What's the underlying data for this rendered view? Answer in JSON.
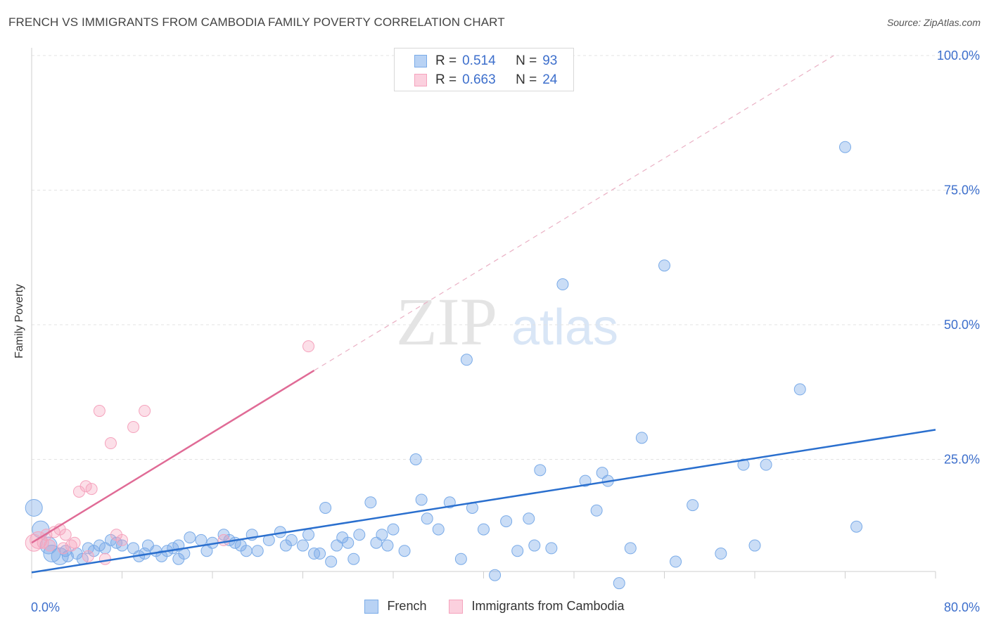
{
  "title": "FRENCH VS IMMIGRANTS FROM CAMBODIA FAMILY POVERTY CORRELATION CHART",
  "source": "Source: ZipAtlas.com",
  "watermark": {
    "zip": "ZIP",
    "atlas": "atlas"
  },
  "legend": {
    "rows": [
      {
        "r_label": "R =",
        "r_value": "0.514",
        "n_label": "N =",
        "n_value": "93"
      },
      {
        "r_label": "R =",
        "r_value": "0.663",
        "n_label": "N =",
        "n_value": "24"
      }
    ]
  },
  "chart_data": {
    "type": "scatter",
    "title": "FRENCH VS IMMIGRANTS FROM CAMBODIA FAMILY POVERTY CORRELATION CHART",
    "xlabel": "",
    "ylabel": "Family Poverty",
    "xlim": [
      0,
      80
    ],
    "ylim": [
      0,
      100
    ],
    "x_tick_labels": [
      "0.0%",
      "80.0%"
    ],
    "y_tick_labels": [
      "100.0%",
      "75.0%",
      "50.0%",
      "25.0%"
    ],
    "y_tick_values": [
      100,
      75,
      50,
      25
    ],
    "grid": true,
    "legend_position": "top-center",
    "series": [
      {
        "name": "French",
        "color": "#7aabe8",
        "line_color": "#2a6fce",
        "trend": {
          "x": [
            0,
            80
          ],
          "y": [
            4,
            30.5
          ],
          "dashed": false
        },
        "points": [
          [
            0.2,
            16
          ],
          [
            0.8,
            12
          ],
          [
            1.5,
            9
          ],
          [
            1.8,
            7.5
          ],
          [
            2.5,
            7
          ],
          [
            3.2,
            7
          ],
          [
            4,
            7.5
          ],
          [
            5,
            8.5
          ],
          [
            5.5,
            8
          ],
          [
            6,
            9
          ],
          [
            6.5,
            8.5
          ],
          [
            7,
            10
          ],
          [
            7.5,
            9.5
          ],
          [
            8,
            9
          ],
          [
            9,
            8.5
          ],
          [
            10,
            7.5
          ],
          [
            10.3,
            9
          ],
          [
            11,
            8
          ],
          [
            11.5,
            7
          ],
          [
            12,
            8
          ],
          [
            12.5,
            8.5
          ],
          [
            13,
            9
          ],
          [
            13.5,
            7.5
          ],
          [
            14,
            10.5
          ],
          [
            15,
            10
          ],
          [
            15.5,
            8
          ],
          [
            16,
            9.5
          ],
          [
            17,
            11
          ],
          [
            17.5,
            10
          ],
          [
            18,
            9.5
          ],
          [
            19,
            8
          ],
          [
            19.5,
            11
          ],
          [
            20,
            8
          ],
          [
            21,
            10
          ],
          [
            22,
            11.5
          ],
          [
            22.5,
            9
          ],
          [
            23,
            10
          ],
          [
            24,
            9
          ],
          [
            24.5,
            11
          ],
          [
            25,
            7.5
          ],
          [
            25.5,
            7.5
          ],
          [
            26,
            16
          ],
          [
            27,
            9
          ],
          [
            27.5,
            10.5
          ],
          [
            28,
            9.5
          ],
          [
            28.5,
            6.5
          ],
          [
            29,
            11
          ],
          [
            30,
            17
          ],
          [
            30.5,
            9.5
          ],
          [
            31,
            11
          ],
          [
            31.5,
            9
          ],
          [
            32,
            12
          ],
          [
            33,
            8
          ],
          [
            34,
            25
          ],
          [
            34.5,
            17.5
          ],
          [
            35,
            14
          ],
          [
            36,
            12
          ],
          [
            37,
            17
          ],
          [
            38,
            6.5
          ],
          [
            38.5,
            43.5
          ],
          [
            39,
            16
          ],
          [
            40,
            12
          ],
          [
            41,
            3.5
          ],
          [
            42,
            13.5
          ],
          [
            43,
            8
          ],
          [
            44,
            14
          ],
          [
            45,
            23
          ],
          [
            46,
            8.5
          ],
          [
            47,
            57.5
          ],
          [
            49,
            21
          ],
          [
            50,
            15.5
          ],
          [
            50.5,
            22.5
          ],
          [
            51,
            21
          ],
          [
            52,
            2
          ],
          [
            53,
            8.5
          ],
          [
            54,
            29
          ],
          [
            56,
            61
          ],
          [
            57,
            6
          ],
          [
            58.5,
            16.5
          ],
          [
            61,
            7.5
          ],
          [
            63,
            24
          ],
          [
            64,
            9
          ],
          [
            65,
            24
          ],
          [
            68,
            38
          ],
          [
            72,
            83
          ],
          [
            73,
            12.5
          ],
          [
            3,
            8
          ],
          [
            4.5,
            6.5
          ],
          [
            9.5,
            7
          ],
          [
            13,
            6.5
          ],
          [
            18.5,
            9
          ],
          [
            26.5,
            6
          ],
          [
            44.5,
            9
          ]
        ]
      },
      {
        "name": "Immigrants from Cambodia",
        "color": "#f5a3bd",
        "line_color": "#e06b96",
        "trend": {
          "x": [
            0,
            25
          ],
          "y": [
            9.5,
            41.5
          ],
          "dashed": false
        },
        "trend_extension": {
          "x": [
            25,
            71
          ],
          "y": [
            41.5,
            100
          ],
          "dashed": true
        },
        "points": [
          [
            0.2,
            9.5
          ],
          [
            0.6,
            10
          ],
          [
            1,
            9.5
          ],
          [
            1.3,
            11
          ],
          [
            1.6,
            9
          ],
          [
            2,
            11.5
          ],
          [
            2.5,
            12
          ],
          [
            3,
            11
          ],
          [
            3.5,
            9
          ],
          [
            3.8,
            9.5
          ],
          [
            4.2,
            19
          ],
          [
            4.8,
            20
          ],
          [
            5.3,
            19.5
          ],
          [
            6,
            34
          ],
          [
            6.5,
            6.5
          ],
          [
            7,
            28
          ],
          [
            7.5,
            11
          ],
          [
            8,
            10
          ],
          [
            9,
            31
          ],
          [
            10,
            34
          ],
          [
            17,
            10
          ],
          [
            24.5,
            46
          ],
          [
            5,
            7
          ],
          [
            2.8,
            8.5
          ]
        ]
      }
    ]
  },
  "bottom_legend": [
    {
      "label": "French"
    },
    {
      "label": "Immigrants from Cambodia"
    }
  ]
}
